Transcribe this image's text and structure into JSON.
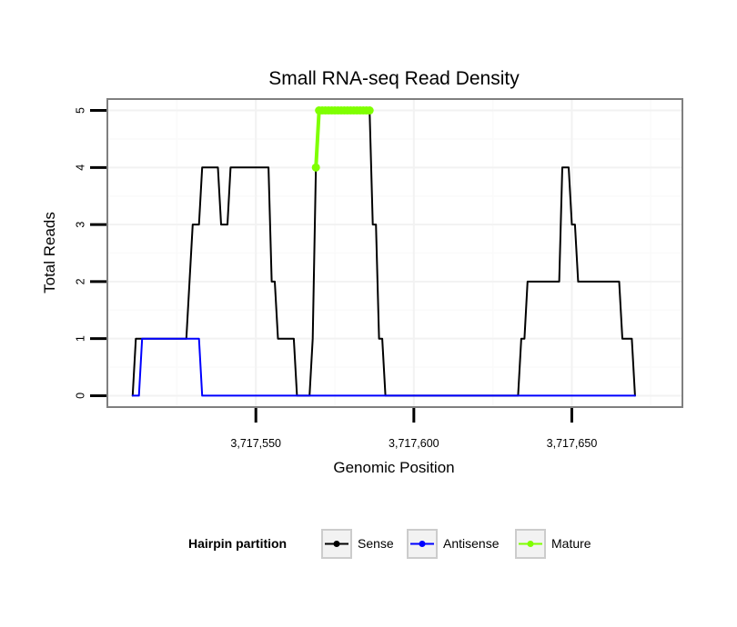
{
  "chart_data": {
    "type": "line",
    "title": "Small RNA-seq Read Density",
    "xlabel": "Genomic Position",
    "ylabel": "Total Reads",
    "xlim": [
      3717503,
      3717685
    ],
    "ylim": [
      -0.2,
      5.2
    ],
    "x_ticks": [
      {
        "value": 3717550,
        "label": "3,717,550"
      },
      {
        "value": 3717600,
        "label": "3,717,600"
      },
      {
        "value": 3717650,
        "label": "3,717,650"
      }
    ],
    "y_ticks": [
      {
        "value": 0,
        "label": "0"
      },
      {
        "value": 1,
        "label": "1"
      },
      {
        "value": 2,
        "label": "2"
      },
      {
        "value": 3,
        "label": "3"
      },
      {
        "value": 4,
        "label": "4"
      },
      {
        "value": 5,
        "label": "5"
      }
    ],
    "grid": true,
    "legend": {
      "title": "Hairpin partition",
      "position": "bottom",
      "entries": [
        {
          "name": "Sense",
          "color": "#000000"
        },
        {
          "name": "Antisense",
          "color": "#0000ff"
        },
        {
          "name": "Mature",
          "color": "#7fff00"
        }
      ]
    },
    "series": [
      {
        "name": "Sense",
        "color": "#000000",
        "points": [
          [
            3717511,
            0
          ],
          [
            3717512,
            1
          ],
          [
            3717513,
            1
          ],
          [
            3717514,
            1
          ],
          [
            3717515,
            1
          ],
          [
            3717516,
            1
          ],
          [
            3717517,
            1
          ],
          [
            3717518,
            1
          ],
          [
            3717519,
            1
          ],
          [
            3717520,
            1
          ],
          [
            3717521,
            1
          ],
          [
            3717522,
            1
          ],
          [
            3717523,
            1
          ],
          [
            3717524,
            1
          ],
          [
            3717525,
            1
          ],
          [
            3717526,
            1
          ],
          [
            3717527,
            1
          ],
          [
            3717528,
            1
          ],
          [
            3717529,
            2
          ],
          [
            3717530,
            3
          ],
          [
            3717531,
            3
          ],
          [
            3717532,
            3
          ],
          [
            3717533,
            4
          ],
          [
            3717534,
            4
          ],
          [
            3717535,
            4
          ],
          [
            3717536,
            4
          ],
          [
            3717537,
            4
          ],
          [
            3717538,
            4
          ],
          [
            3717539,
            3
          ],
          [
            3717540,
            3
          ],
          [
            3717541,
            3
          ],
          [
            3717542,
            4
          ],
          [
            3717543,
            4
          ],
          [
            3717544,
            4
          ],
          [
            3717545,
            4
          ],
          [
            3717546,
            4
          ],
          [
            3717547,
            4
          ],
          [
            3717548,
            4
          ],
          [
            3717549,
            4
          ],
          [
            3717550,
            4
          ],
          [
            3717551,
            4
          ],
          [
            3717552,
            4
          ],
          [
            3717553,
            4
          ],
          [
            3717554,
            4
          ],
          [
            3717555,
            2
          ],
          [
            3717556,
            2
          ],
          [
            3717557,
            1
          ],
          [
            3717558,
            1
          ],
          [
            3717559,
            1
          ],
          [
            3717560,
            1
          ],
          [
            3717561,
            1
          ],
          [
            3717562,
            1
          ],
          [
            3717563,
            0
          ],
          [
            3717564,
            0
          ],
          [
            3717565,
            0
          ],
          [
            3717566,
            0
          ],
          [
            3717567,
            0
          ],
          [
            3717568,
            1
          ],
          [
            3717569,
            4
          ],
          [
            3717570,
            5
          ],
          [
            3717571,
            5
          ],
          [
            3717572,
            5
          ],
          [
            3717573,
            5
          ],
          [
            3717574,
            5
          ],
          [
            3717575,
            5
          ],
          [
            3717576,
            5
          ],
          [
            3717577,
            5
          ],
          [
            3717578,
            5
          ],
          [
            3717579,
            5
          ],
          [
            3717580,
            5
          ],
          [
            3717581,
            5
          ],
          [
            3717582,
            5
          ],
          [
            3717583,
            5
          ],
          [
            3717584,
            5
          ],
          [
            3717585,
            5
          ],
          [
            3717586,
            5
          ],
          [
            3717587,
            3
          ],
          [
            3717588,
            3
          ],
          [
            3717589,
            1
          ],
          [
            3717590,
            1
          ],
          [
            3717591,
            0
          ],
          [
            3717600,
            0
          ],
          [
            3717610,
            0
          ],
          [
            3717620,
            0
          ],
          [
            3717630,
            0
          ],
          [
            3717633,
            0
          ],
          [
            3717634,
            1
          ],
          [
            3717635,
            1
          ],
          [
            3717636,
            2
          ],
          [
            3717637,
            2
          ],
          [
            3717638,
            2
          ],
          [
            3717639,
            2
          ],
          [
            3717640,
            2
          ],
          [
            3717641,
            2
          ],
          [
            3717642,
            2
          ],
          [
            3717643,
            2
          ],
          [
            3717644,
            2
          ],
          [
            3717645,
            2
          ],
          [
            3717646,
            2
          ],
          [
            3717647,
            4
          ],
          [
            3717648,
            4
          ],
          [
            3717649,
            4
          ],
          [
            3717650,
            3
          ],
          [
            3717651,
            3
          ],
          [
            3717652,
            2
          ],
          [
            3717653,
            2
          ],
          [
            3717654,
            2
          ],
          [
            3717655,
            2
          ],
          [
            3717656,
            2
          ],
          [
            3717657,
            2
          ],
          [
            3717658,
            2
          ],
          [
            3717659,
            2
          ],
          [
            3717660,
            2
          ],
          [
            3717661,
            2
          ],
          [
            3717662,
            2
          ],
          [
            3717663,
            2
          ],
          [
            3717664,
            2
          ],
          [
            3717665,
            2
          ],
          [
            3717666,
            1
          ],
          [
            3717667,
            1
          ],
          [
            3717668,
            1
          ],
          [
            3717669,
            1
          ],
          [
            3717670,
            0
          ]
        ]
      },
      {
        "name": "Antisense",
        "color": "#0000ff",
        "points": [
          [
            3717511,
            0
          ],
          [
            3717513,
            0
          ],
          [
            3717514,
            1
          ],
          [
            3717515,
            1
          ],
          [
            3717520,
            1
          ],
          [
            3717525,
            1
          ],
          [
            3717530,
            1
          ],
          [
            3717532,
            1
          ],
          [
            3717533,
            0
          ],
          [
            3717540,
            0
          ],
          [
            3717560,
            0
          ],
          [
            3717580,
            0
          ],
          [
            3717600,
            0
          ],
          [
            3717620,
            0
          ],
          [
            3717640,
            0
          ],
          [
            3717660,
            0
          ],
          [
            3717670,
            0
          ]
        ]
      },
      {
        "name": "Mature",
        "color": "#7fff00",
        "points": [
          [
            3717569,
            4
          ],
          [
            3717570,
            5
          ],
          [
            3717571,
            5
          ],
          [
            3717572,
            5
          ],
          [
            3717573,
            5
          ],
          [
            3717574,
            5
          ],
          [
            3717575,
            5
          ],
          [
            3717576,
            5
          ],
          [
            3717577,
            5
          ],
          [
            3717578,
            5
          ],
          [
            3717579,
            5
          ],
          [
            3717580,
            5
          ],
          [
            3717581,
            5
          ],
          [
            3717582,
            5
          ],
          [
            3717583,
            5
          ],
          [
            3717584,
            5
          ],
          [
            3717585,
            5
          ],
          [
            3717586,
            5
          ]
        ]
      }
    ]
  }
}
